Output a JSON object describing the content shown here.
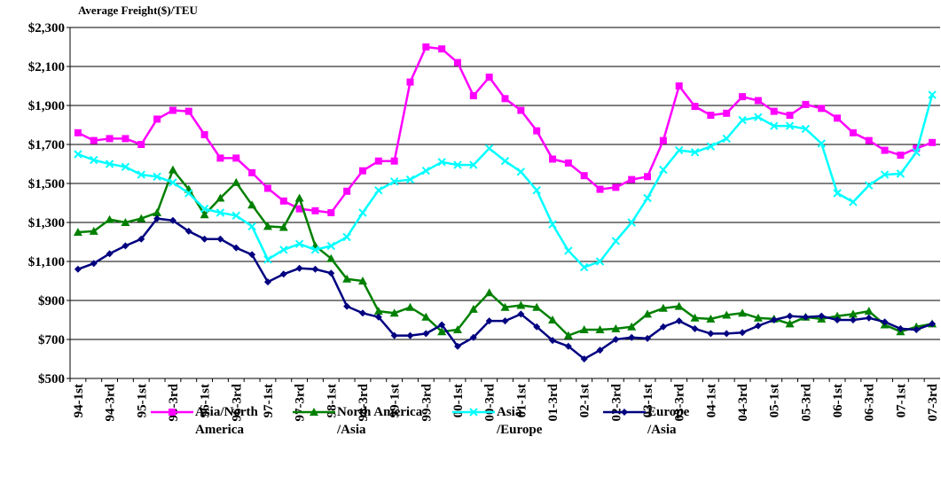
{
  "chart_data": {
    "type": "line",
    "y_axis_label": "Average Freight($)/TEU",
    "categories": [
      "94-1st",
      null,
      "94-3rd",
      null,
      "95-1st",
      null,
      "95-3rd",
      null,
      "96-1st",
      null,
      "96-3rd",
      null,
      "97-1st",
      null,
      "97-3rd",
      null,
      "98-1st",
      null,
      "98-3rd",
      null,
      "99-1st",
      null,
      "99-3rd",
      null,
      "00-1st",
      null,
      "00-3rd",
      null,
      "01-1st",
      null,
      "01-3rd",
      null,
      "02-1st",
      null,
      "02-3rd",
      null,
      "03-1st",
      null,
      "03-3rd",
      null,
      "04-1st",
      null,
      "04-3rd",
      null,
      "05-1st",
      null,
      "05-3rd",
      null,
      "06-1st",
      null,
      "06-3rd",
      null,
      "07-1st",
      null,
      "07-3rd"
    ],
    "series": [
      {
        "name": "Asia/North\nAmerica",
        "color": "#ff00ff",
        "marker": "square",
        "values": [
          1760,
          1720,
          1730,
          1730,
          1700,
          1830,
          1875,
          1870,
          1750,
          1630,
          1630,
          1555,
          1475,
          1410,
          1370,
          1360,
          1350,
          1460,
          1565,
          1615,
          1615,
          2020,
          2200,
          2190,
          2120,
          1950,
          2045,
          1935,
          1875,
          1770,
          1625,
          1605,
          1540,
          1470,
          1480,
          1520,
          1535,
          1720,
          2000,
          1895,
          1850,
          1860,
          1945,
          1925,
          1870,
          1850,
          1905,
          1885,
          1835,
          1760,
          1720,
          1670,
          1645,
          1680,
          1710
        ]
      },
      {
        "name": "North America\n/Asia",
        "color": "#008000",
        "marker": "triangle",
        "values": [
          1250,
          1255,
          1315,
          1300,
          1320,
          1350,
          1570,
          1470,
          1340,
          1425,
          1505,
          1390,
          1280,
          1275,
          1425,
          1180,
          1115,
          1010,
          1000,
          845,
          835,
          865,
          815,
          740,
          750,
          855,
          940,
          865,
          875,
          865,
          800,
          720,
          750,
          750,
          755,
          765,
          830,
          860,
          870,
          810,
          805,
          825,
          835,
          810,
          805,
          780,
          815,
          805,
          820,
          830,
          845,
          775,
          740,
          765,
          780
        ]
      },
      {
        "name": "Asia\n/Europe",
        "color": "#00ffff",
        "marker": "cross",
        "values": [
          1650,
          1620,
          1600,
          1585,
          1545,
          1535,
          1505,
          1450,
          1370,
          1350,
          1335,
          1280,
          1110,
          1160,
          1190,
          1160,
          1180,
          1225,
          1350,
          1465,
          1510,
          1520,
          1565,
          1610,
          1595,
          1595,
          1680,
          1615,
          1560,
          1465,
          1290,
          1155,
          1070,
          1100,
          1205,
          1300,
          1425,
          1570,
          1670,
          1660,
          1690,
          1730,
          1825,
          1840,
          1795,
          1795,
          1780,
          1705,
          1450,
          1405,
          1490,
          1545,
          1550,
          1660,
          1955
        ]
      },
      {
        "name": "Europe\n/Asia",
        "color": "#000080",
        "marker": "diamond",
        "values": [
          1060,
          1090,
          1140,
          1180,
          1215,
          1320,
          1310,
          1255,
          1215,
          1215,
          1170,
          1135,
          995,
          1035,
          1065,
          1060,
          1040,
          870,
          835,
          815,
          720,
          720,
          730,
          775,
          665,
          710,
          795,
          795,
          830,
          765,
          695,
          665,
          600,
          645,
          700,
          710,
          705,
          765,
          795,
          755,
          730,
          730,
          735,
          770,
          800,
          820,
          815,
          820,
          800,
          800,
          810,
          790,
          755,
          750,
          780
        ]
      }
    ],
    "ylim": [
      500,
      2300
    ],
    "yticks": [
      {
        "value": 500,
        "label": "$500"
      },
      {
        "value": 700,
        "label": "$700"
      },
      {
        "value": 900,
        "label": "$900"
      },
      {
        "value": 1100,
        "label": "$1,100"
      },
      {
        "value": 1300,
        "label": "$1,300"
      },
      {
        "value": 1500,
        "label": "$1,500"
      },
      {
        "value": 1700,
        "label": "$1,700"
      },
      {
        "value": 1900,
        "label": "$1,900"
      },
      {
        "value": 2100,
        "label": "$2,100"
      },
      {
        "value": 2300,
        "label": "$2,300"
      }
    ],
    "grid": true,
    "legend": "bottom"
  }
}
